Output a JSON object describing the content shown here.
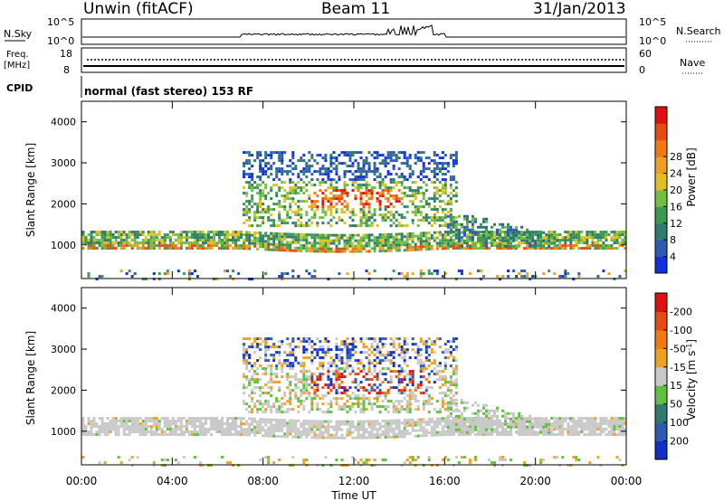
{
  "header": {
    "station": "Unwin (fitACF)",
    "beam": "Beam 11",
    "date": "31/Jan/2013"
  },
  "top_panels": {
    "nsky_label": "N.Sky",
    "nsearch_label": "N.Search",
    "nsky_ticks": [
      "10^5",
      "10^0"
    ],
    "nsearch_ticks": [
      "10^5",
      "10^0"
    ],
    "freq_label_1": "Freq.",
    "freq_label_2": "[MHz]",
    "freq_ticks": [
      "18",
      "8"
    ],
    "nave_label": "Nave",
    "nave_ticks": [
      "60",
      "0"
    ],
    "cpid_label": "CPID",
    "cpid_text": "normal (fast stereo) 153 RF"
  },
  "colors": {
    "panel_border": "#000000",
    "trace": "#000000"
  },
  "chart_data": [
    {
      "type": "heatmap",
      "title": "",
      "xlabel": "Time UT",
      "ylabel": "Slant Range [km]",
      "x_ticks": [
        "00:00",
        "04:00",
        "08:00",
        "12:00",
        "16:00",
        "20:00",
        "00:00"
      ],
      "x_hours": [
        0,
        4,
        8,
        12,
        16,
        20,
        24
      ],
      "y_ticks": [
        1000,
        2000,
        3000,
        4000
      ],
      "ylim": [
        180,
        4500
      ],
      "colorbar_label": "Power [dB]",
      "colorbar_ticks": [
        "4",
        "8",
        "12",
        "16",
        "20",
        "24",
        "28"
      ],
      "colorbar_colors": [
        "#1030e0",
        "#2c5ab5",
        "#307a6e",
        "#3a9a50",
        "#6fc040",
        "#e0c020",
        "#f0a020",
        "#f07a10",
        "#e84a10",
        "#e01010"
      ]
    },
    {
      "type": "heatmap",
      "title": "",
      "xlabel": "Time UT",
      "ylabel": "Slant Range [km]",
      "x_ticks": [
        "00:00",
        "04:00",
        "08:00",
        "12:00",
        "16:00",
        "20:00",
        "00:00"
      ],
      "x_hours": [
        0,
        4,
        8,
        12,
        16,
        20,
        24
      ],
      "y_ticks": [
        1000,
        2000,
        3000,
        4000
      ],
      "ylim": [
        180,
        4500
      ],
      "colorbar_label": "Velocity [m s",
      "colorbar_label_sup": "-1",
      "colorbar_label_end": "]",
      "colorbar_ticks": [
        "200",
        "100",
        "50",
        "15",
        "-15",
        "-50",
        "-100",
        "-200"
      ],
      "colorbar_colors": [
        "#1030c8",
        "#2c5ab5",
        "#307a6e",
        "#60c040",
        "#c8c8c8",
        "#f0a020",
        "#f07a10",
        "#e84a10",
        "#e01010"
      ]
    }
  ]
}
